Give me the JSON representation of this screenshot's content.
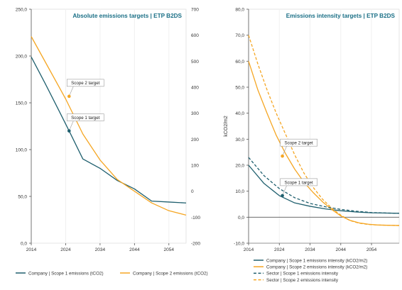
{
  "colors": {
    "scope1": "#1f5f6e",
    "scope2": "#f5a623",
    "title": "#1a6f86",
    "axis": "#333333",
    "grid": "#f0f0f0",
    "frame": "#d6d6d6"
  },
  "chart_data": [
    {
      "type": "line",
      "title": "Absolute emissions targets | ETP B2DS",
      "xlabel": "",
      "ylabel": "",
      "xlim": [
        2014,
        2059
      ],
      "x_ticks": [
        2014,
        2024,
        2034,
        2044,
        2054
      ],
      "x_tick_labels": [
        "2014",
        "2024",
        "2034",
        "2044",
        "2054"
      ],
      "ylim": [
        0,
        250
      ],
      "y_ticks": [
        0,
        50,
        100,
        150,
        200,
        250
      ],
      "y_tick_labels": [
        "0,0",
        "50,0",
        "100,0",
        "150,0",
        "200,0",
        "250,0"
      ],
      "y2lim": [
        -200,
        700
      ],
      "y2_ticks": [
        -200,
        -100,
        0,
        100,
        200,
        300,
        400,
        500,
        600,
        700
      ],
      "y2_tick_labels": [
        "-200",
        "-100",
        "0",
        "100",
        "200",
        "300",
        "400",
        "500",
        "600",
        "700"
      ],
      "series": [
        {
          "name": "Company | Scope 1 emissions (tCO2)",
          "color_key": "scope1",
          "dashed": false,
          "axis": "left",
          "x": [
            2014,
            2018,
            2022,
            2025,
            2029,
            2034,
            2039,
            2044,
            2049,
            2054,
            2059
          ],
          "y": [
            199,
            171,
            142,
            120,
            90,
            80,
            67,
            58,
            45,
            44,
            43
          ]
        },
        {
          "name": "Company | Scope 2 emissions (tCO2)",
          "color_key": "scope2",
          "dashed": false,
          "axis": "right",
          "x": [
            2014,
            2019,
            2024,
            2029,
            2034,
            2039,
            2044,
            2049,
            2054,
            2059
          ],
          "y": [
            595,
            475,
            355,
            220,
            120,
            45,
            0,
            -45,
            -75,
            -92
          ]
        }
      ],
      "annotations": [
        {
          "label": "Scope 2 target",
          "series": 1,
          "x": 2025,
          "y": 365
        },
        {
          "label": "Scope 1 target",
          "series": 0,
          "x": 2025,
          "y": 120
        }
      ],
      "legend_position": "bottom"
    },
    {
      "type": "line",
      "title": "Emissions intensity targets | ETP B2DS",
      "xlabel": "",
      "ylabel": "kCO2/m2",
      "xlim": [
        2014,
        2063
      ],
      "x_ticks": [
        2014,
        2024,
        2034,
        2044,
        2054
      ],
      "x_tick_labels": [
        "2014",
        "2024",
        "2034",
        "2044",
        "2054"
      ],
      "ylim": [
        -10,
        80
      ],
      "y_ticks": [
        -10,
        0,
        10,
        20,
        30,
        40,
        50,
        60,
        70,
        80
      ],
      "y_tick_labels": [
        "-10,0",
        "0,0",
        "10,0",
        "20,0",
        "30,0",
        "40,0",
        "50,0",
        "60,0",
        "70,0",
        "80,0"
      ],
      "series": [
        {
          "name": "Company | Scope 1 emissions intensity (kCO2/m2)",
          "color_key": "scope1",
          "dashed": false,
          "x": [
            2014,
            2019,
            2024,
            2029,
            2034,
            2039,
            2044,
            2049,
            2054,
            2059,
            2063
          ],
          "y": [
            20,
            13,
            8.3,
            5.5,
            4.2,
            3.2,
            2.5,
            2.0,
            1.7,
            1.6,
            1.5
          ]
        },
        {
          "name": "Company | Scope 2 emissions intensity (kCO2/m2)",
          "color_key": "scope2",
          "dashed": false,
          "x": [
            2014,
            2017,
            2020,
            2023,
            2026,
            2029,
            2032,
            2035,
            2038,
            2041,
            2044,
            2047,
            2050,
            2053,
            2056,
            2059,
            2063
          ],
          "y": [
            60,
            49,
            40,
            31.5,
            24.5,
            18.5,
            13.5,
            9.5,
            6,
            3,
            0.5,
            -1.2,
            -2.2,
            -2.7,
            -3.0,
            -3.1,
            -3.2
          ]
        },
        {
          "name": "Sector | Scope 1 emissions intensity",
          "color_key": "scope1",
          "dashed": true,
          "x": [
            2014,
            2019,
            2024,
            2029,
            2034,
            2039,
            2044,
            2049,
            2054,
            2059,
            2063
          ],
          "y": [
            23,
            16,
            11,
            7.5,
            5.3,
            4.0,
            3.0,
            2.3,
            1.8,
            1.6,
            1.5
          ]
        },
        {
          "name": "Sector | Scope 2 emissions intensity",
          "color_key": "scope2",
          "dashed": true,
          "x": [
            2014,
            2017,
            2020,
            2023,
            2026,
            2029,
            2032,
            2035,
            2038,
            2041,
            2044,
            2047,
            2050,
            2053,
            2056,
            2059,
            2063
          ],
          "y": [
            70,
            59,
            49,
            40,
            32,
            24,
            17,
            11.5,
            7,
            3.5,
            0.8,
            -1.3,
            -2.3,
            -2.8,
            -3.0,
            -3.1,
            -3.2
          ]
        }
      ],
      "annotations": [
        {
          "label": "Scope 2 target",
          "series": 1,
          "x": 2025,
          "y": 23.5
        },
        {
          "label": "Scope 1 target",
          "series": 0,
          "x": 2025,
          "y": 8.3
        }
      ],
      "legend_position": "bottom"
    }
  ]
}
